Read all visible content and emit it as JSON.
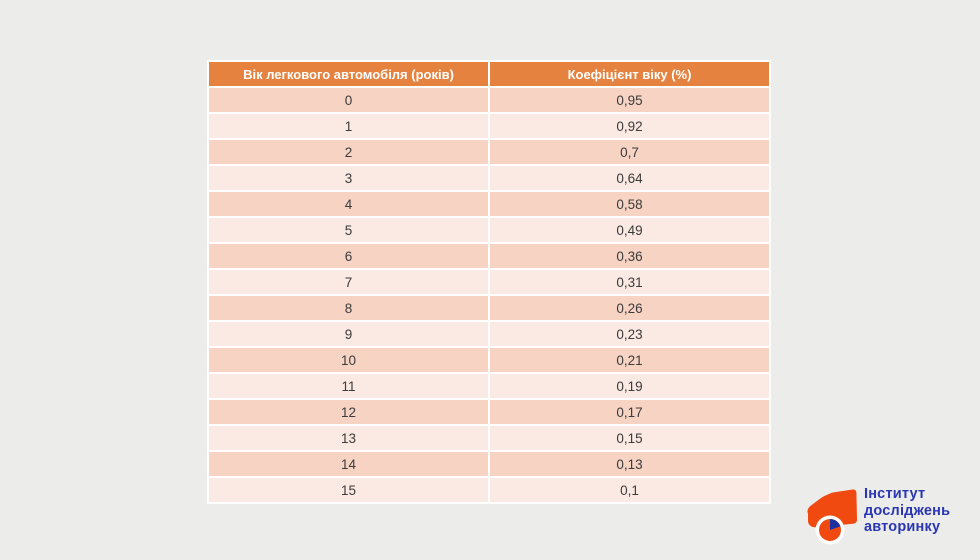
{
  "page": {
    "background_color": "#ECEDEB"
  },
  "table": {
    "columns": [
      "Вік легкового автомобіля (років)",
      "Коефіцієнт віку (%)"
    ],
    "rows": [
      [
        "0",
        "0,95"
      ],
      [
        "1",
        "0,92"
      ],
      [
        "2",
        "0,7"
      ],
      [
        "3",
        "0,64"
      ],
      [
        "4",
        "0,58"
      ],
      [
        "5",
        "0,49"
      ],
      [
        "6",
        "0,36"
      ],
      [
        "7",
        "0,31"
      ],
      [
        "8",
        "0,26"
      ],
      [
        "9",
        "0,23"
      ],
      [
        "10",
        "0,21"
      ],
      [
        "11",
        "0,19"
      ],
      [
        "12",
        "0,17"
      ],
      [
        "13",
        "0,15"
      ],
      [
        "14",
        "0,13"
      ],
      [
        "15",
        "0,1"
      ]
    ],
    "colors": {
      "header_bg": "#E5823F",
      "header_text": "#FFFFFF",
      "row_dark": "#F7D3C4",
      "row_light": "#FBEAE3",
      "cell_text": "#3B3B3B",
      "grid_gap": "#FFFFFF"
    }
  },
  "logo": {
    "lines": [
      "Інститут",
      "досліджень",
      "авторинку"
    ],
    "text_color": "#2A36B4",
    "icon": "car-piechart-icon",
    "icon_orange": "#F04A10",
    "icon_blue": "#20309E"
  },
  "chart_data": {
    "type": "table",
    "title": "",
    "columns": [
      "Вік легкового автомобіля (років)",
      "Коефіцієнт віку (%)"
    ],
    "categories": [
      0,
      1,
      2,
      3,
      4,
      5,
      6,
      7,
      8,
      9,
      10,
      11,
      12,
      13,
      14,
      15
    ],
    "values": [
      0.95,
      0.92,
      0.7,
      0.64,
      0.58,
      0.49,
      0.36,
      0.31,
      0.26,
      0.23,
      0.21,
      0.19,
      0.17,
      0.15,
      0.13,
      0.1
    ],
    "xlabel": "Вік легкового автомобіля (років)",
    "ylabel": "Коефіцієнт віку (%)"
  }
}
